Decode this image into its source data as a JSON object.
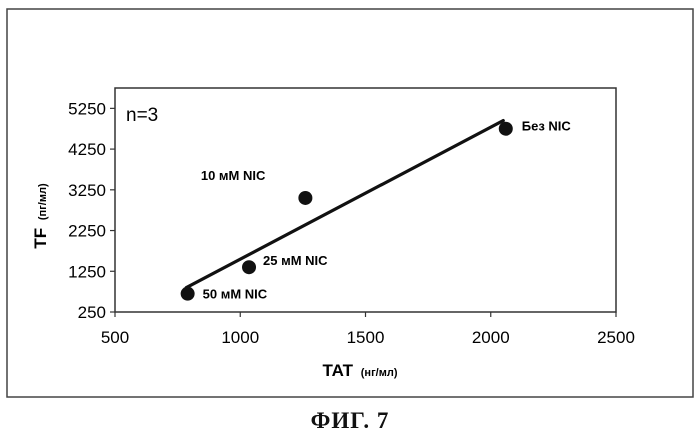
{
  "chart_data": {
    "type": "scatter",
    "annotation_n": "n=3",
    "xlabel": "TAT",
    "xlabel_unit": "(нг/мл)",
    "ylabel": "TF",
    "ylabel_unit": "(пг/мл)",
    "xlim": [
      500,
      2500
    ],
    "ylim": [
      250,
      5750
    ],
    "x_ticks": [
      500,
      1000,
      1500,
      2000,
      2500
    ],
    "y_ticks": [
      250,
      1250,
      2250,
      3250,
      4250,
      5250
    ],
    "grid": false,
    "points": [
      {
        "x": 790,
        "y": 700,
        "label": "50 мМ  NIC",
        "label_side": "right-below"
      },
      {
        "x": 1035,
        "y": 1350,
        "label": "25 мМ  NIC",
        "label_side": "right-above"
      },
      {
        "x": 1260,
        "y": 3050,
        "label": "10 мМ  NIC",
        "label_side": "left-above"
      },
      {
        "x": 2060,
        "y": 4750,
        "label": "Без  NIC",
        "label_side": "right"
      }
    ],
    "trendline": {
      "x": [
        785,
        2050
      ],
      "y": [
        850,
        4950
      ]
    },
    "colors": {
      "points": "#111111",
      "line": "#111111",
      "frame": "#333333"
    }
  },
  "figure_caption": "ФИГ. 7"
}
